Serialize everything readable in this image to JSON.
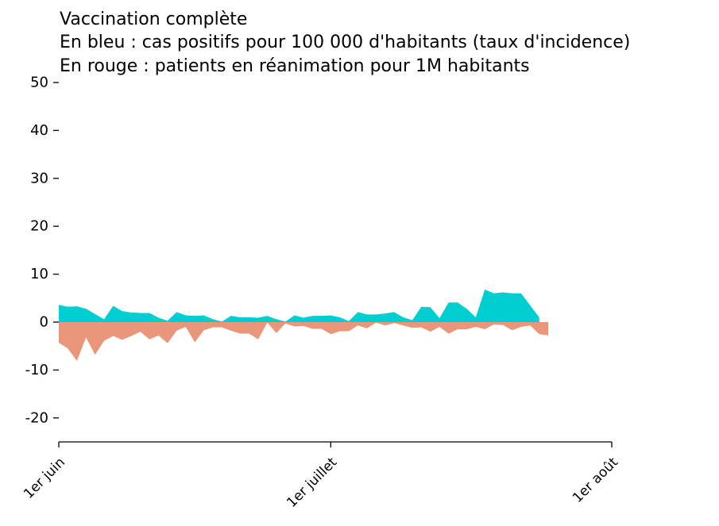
{
  "chart_data": {
    "type": "area",
    "title_lines": [
      "Vaccination complète",
      "En bleu : cas positifs pour 100 000 d'habitants (taux d'incidence)",
      "En rouge : patients en réanimation pour 1M habitants"
    ],
    "xlabel": "",
    "ylabel": "",
    "x_start": "2021-06-01",
    "x_range": [
      "2021-06-01",
      "2021-08-01"
    ],
    "x_ticks": [
      "1er juin",
      "1er juillet",
      "1er août"
    ],
    "ylim": [
      -25,
      50
    ],
    "y_ticks": [
      -20,
      -10,
      0,
      10,
      20,
      30,
      40,
      50
    ],
    "grid": false,
    "series": [
      {
        "color": "#00CED1",
        "values": [
          3.6,
          3.2,
          3.3,
          2.8,
          1.7,
          0.6,
          3.4,
          2.3,
          2.0,
          1.9,
          1.9,
          0.9,
          0.3,
          2.1,
          1.4,
          1.3,
          1.4,
          0.6,
          0.1,
          1.3,
          1.0,
          1.0,
          0.9,
          1.3,
          0.6,
          0.1,
          1.4,
          0.9,
          1.3,
          1.3,
          1.4,
          1.0,
          0.2,
          2.1,
          1.6,
          1.6,
          1.8,
          2.1,
          1.0,
          0.4,
          3.2,
          3.1,
          0.8,
          4.1,
          4.1,
          2.8,
          1.0,
          6.8,
          6.0,
          6.2,
          6.0,
          6.0,
          3.5,
          1.0
        ]
      },
      {
        "color": "#E9967A",
        "values": [
          -4.3,
          -5.5,
          -8.1,
          -3.2,
          -6.8,
          -3.9,
          -2.9,
          -3.7,
          -2.9,
          -2.0,
          -3.6,
          -2.8,
          -4.4,
          -1.8,
          -1.0,
          -4.2,
          -1.7,
          -1.1,
          -1.1,
          -1.8,
          -2.4,
          -2.4,
          -3.6,
          -0.1,
          -2.3,
          -0.3,
          -0.9,
          -0.8,
          -1.4,
          -1.4,
          -2.5,
          -1.9,
          -1.9,
          -0.7,
          -1.3,
          -0.1,
          -0.7,
          -0.2,
          -0.7,
          -1.2,
          -1.1,
          -2.0,
          -1.0,
          -2.4,
          -1.5,
          -1.5,
          -1.0,
          -1.5,
          -0.5,
          -0.6,
          -1.7,
          -1.0,
          -0.7,
          -2.5,
          -2.8
        ]
      }
    ]
  }
}
